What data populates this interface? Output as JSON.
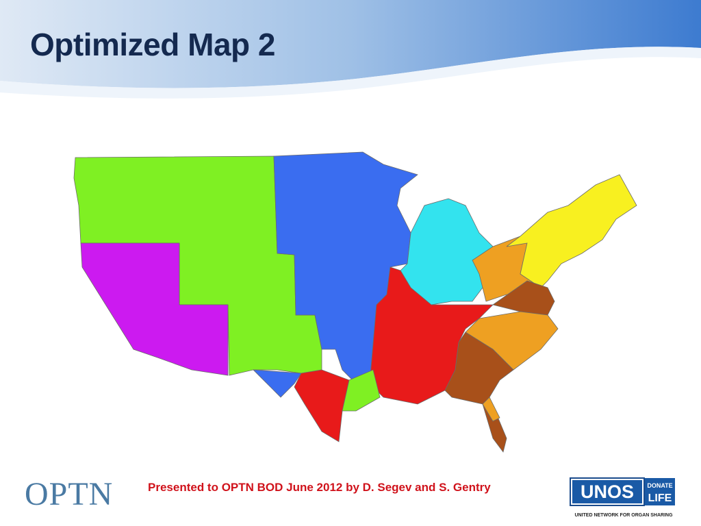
{
  "header": {
    "title": "Optimized Map 2"
  },
  "footer": {
    "credit": "Presented to OPTN BOD June 2012 by D. Segev and S. Gentry",
    "left_logo": "OPTN",
    "right_logo": {
      "name": "UNOS",
      "badge_top": "DONATE",
      "badge_bottom": "LIFE",
      "tagline": "UNITED NETWORK FOR ORGAN SHARING"
    }
  }
}
